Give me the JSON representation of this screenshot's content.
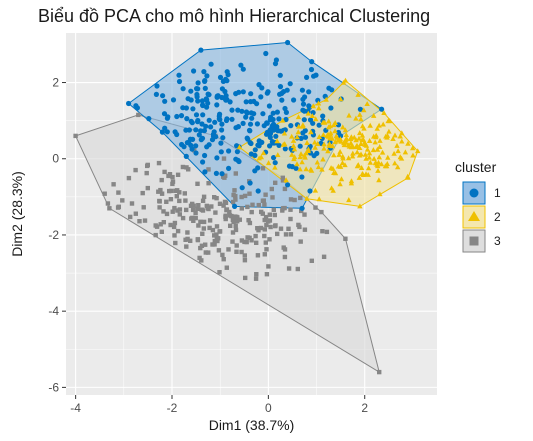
{
  "chart_data": {
    "type": "scatter",
    "title": "Biểu đồ PCA cho mô hình Hierarchical Clustering",
    "xlabel": "Dim1 (38.7%)",
    "ylabel": "Dim2 (28.3%)",
    "xlim": [
      -4.2,
      3.5
    ],
    "ylim": [
      -6.2,
      3.3
    ],
    "x_ticks": [
      -4,
      -2,
      0,
      2
    ],
    "x_tick_labels": [
      "-4",
      "-2",
      "0",
      "2"
    ],
    "y_ticks": [
      -6,
      -4,
      -2,
      0,
      2
    ],
    "y_tick_labels": [
      "-6",
      "-4",
      "-2",
      "0",
      "2"
    ],
    "grid": true,
    "legend": {
      "title": "cluster",
      "position": "right"
    },
    "series": [
      {
        "name": "1",
        "marker": "circle",
        "color": "#0073C2",
        "fill": "#86B5E0",
        "hull": [
          [
            0.4,
            3.05
          ],
          [
            0.9,
            2.55
          ],
          [
            2.35,
            1.3
          ],
          [
            1.5,
            0.6
          ],
          [
            0.7,
            -1.3
          ],
          [
            -0.7,
            -1.25
          ],
          [
            -2.2,
            0.7
          ],
          [
            -2.9,
            1.45
          ],
          [
            -1.4,
            2.85
          ]
        ],
        "center": [
          -0.6,
          1.0
        ],
        "spread": [
          1.2,
          0.8
        ],
        "count": 290,
        "seed": 11
      },
      {
        "name": "2",
        "marker": "triangle",
        "color": "#EFC000",
        "fill": "#F2E3A0",
        "hull": [
          [
            1.6,
            2.05
          ],
          [
            2.4,
            1.2
          ],
          [
            3.1,
            0.2
          ],
          [
            2.9,
            -0.5
          ],
          [
            1.9,
            -1.25
          ],
          [
            0.8,
            -1.05
          ],
          [
            -0.6,
            0.3
          ],
          [
            0.3,
            1.0
          ],
          [
            1.2,
            1.55
          ]
        ],
        "center": [
          1.6,
          0.3
        ],
        "spread": [
          0.85,
          0.55
        ],
        "count": 220,
        "seed": 23
      },
      {
        "name": "3",
        "marker": "square",
        "color": "#868686",
        "fill": "#D8D8D8",
        "hull": [
          [
            -4.0,
            0.6
          ],
          [
            -2.7,
            1.15
          ],
          [
            -1.1,
            0.6
          ],
          [
            0.3,
            -0.5
          ],
          [
            1.1,
            -1.4
          ],
          [
            1.6,
            -2.1
          ],
          [
            2.3,
            -5.6
          ],
          [
            -3.3,
            -1.3
          ]
        ],
        "center": [
          -1.3,
          -1.6
        ],
        "spread": [
          1.1,
          0.75
        ],
        "count": 260,
        "seed": 37
      }
    ]
  }
}
